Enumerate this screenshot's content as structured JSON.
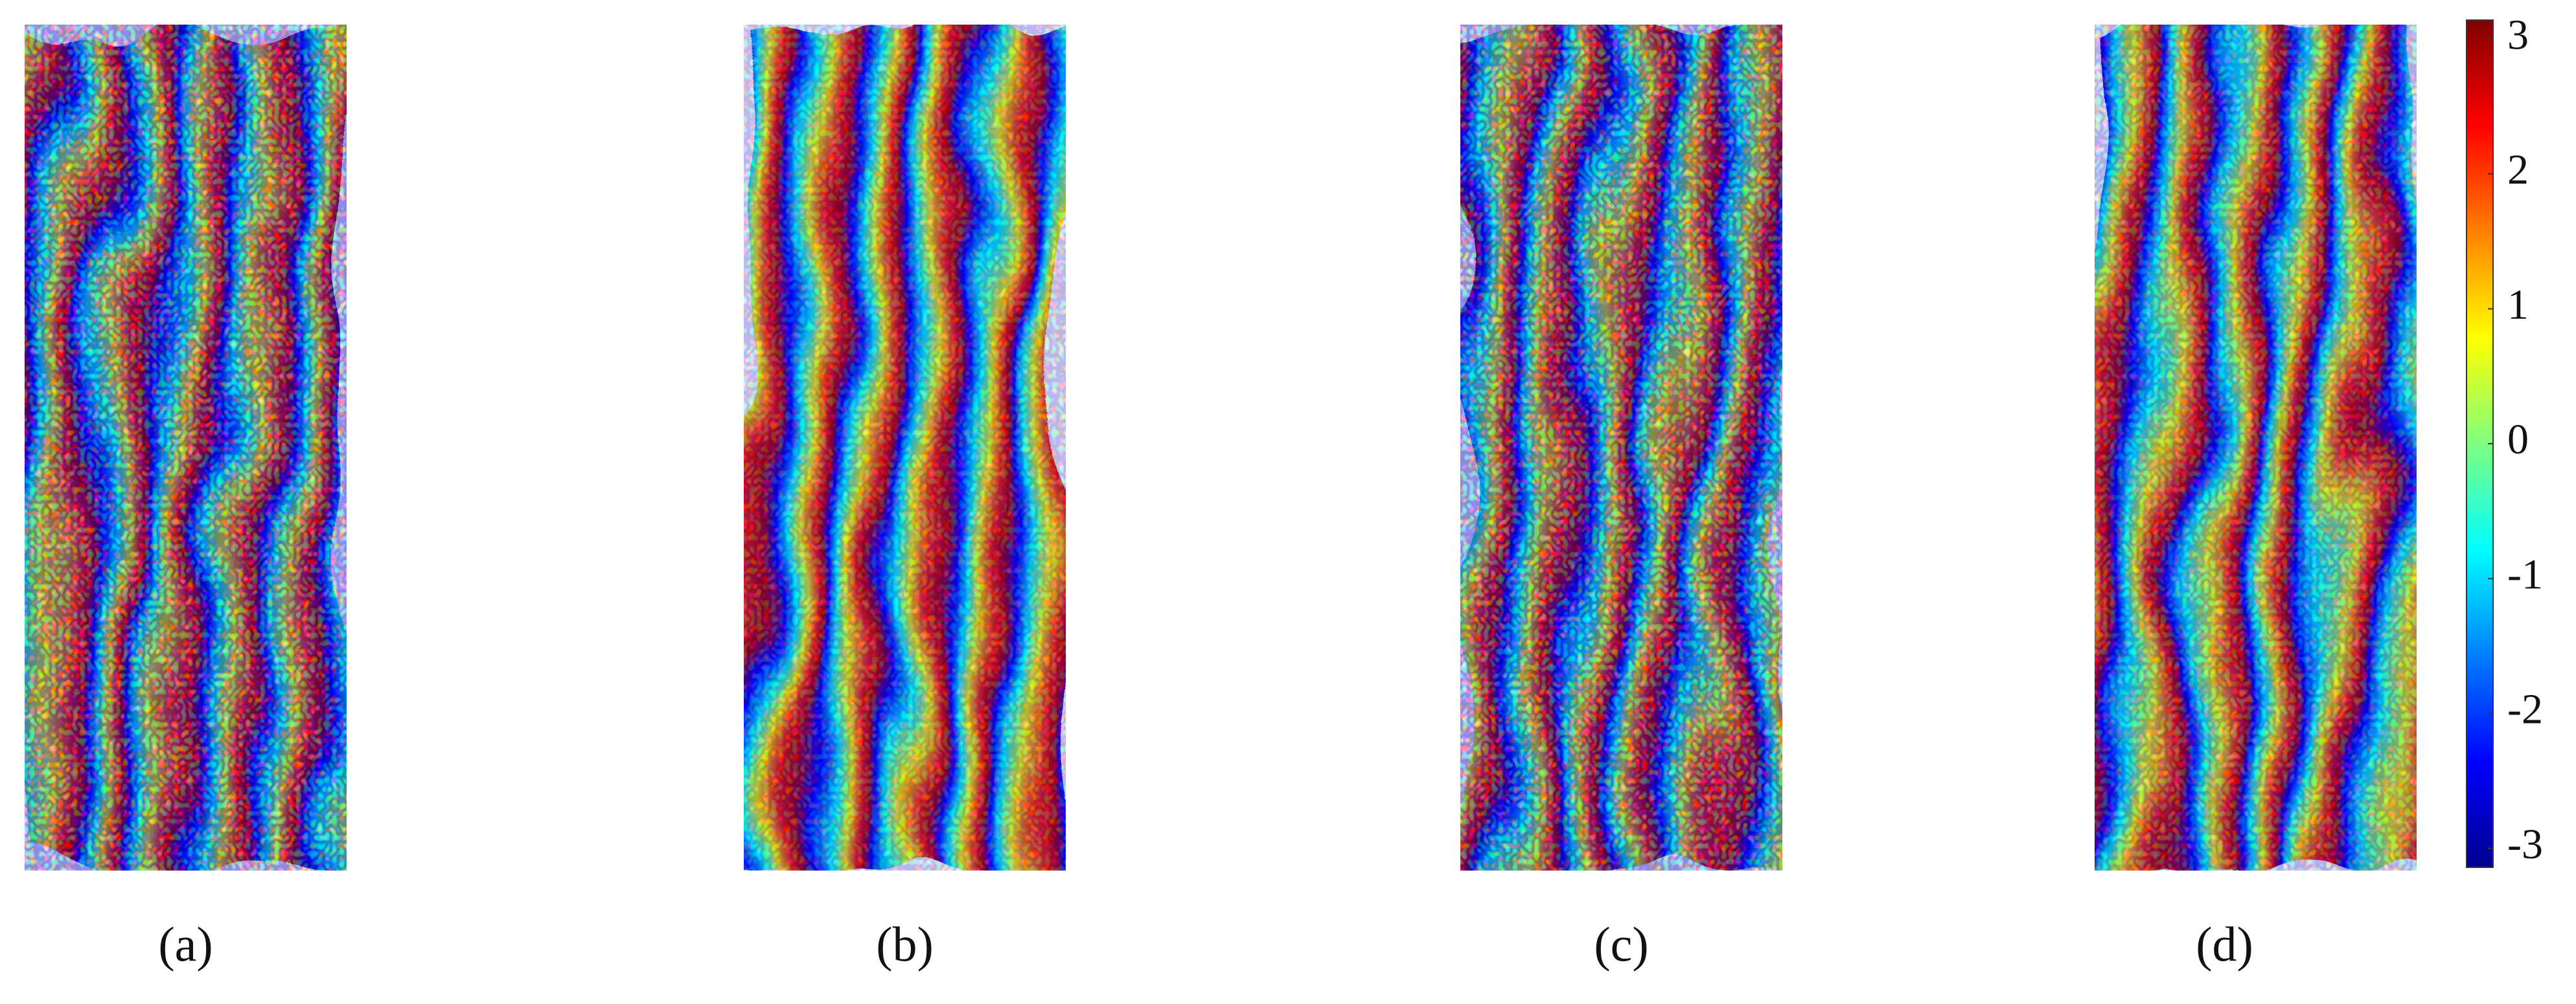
{
  "panels": [
    {
      "label": "(a)"
    },
    {
      "label": "(b)"
    },
    {
      "label": "(c)"
    },
    {
      "label": "(d)"
    }
  ],
  "colorbar": {
    "lim": [
      -3.14,
      3.14
    ],
    "ticks": [
      3,
      2,
      1,
      0,
      -1,
      -2,
      -3
    ]
  }
}
